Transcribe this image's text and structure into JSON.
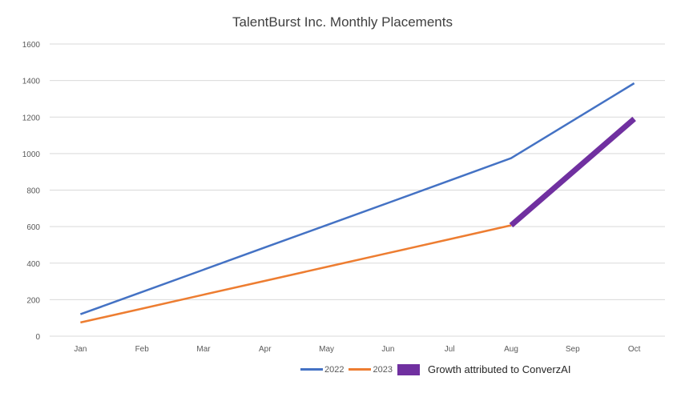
{
  "chart_data": {
    "type": "line",
    "title": "TalentBurst Inc. Monthly Placements",
    "xlabel": "",
    "ylabel": "",
    "categories": [
      "Jan",
      "Feb",
      "Mar",
      "Apr",
      "May",
      "Jun",
      "Jul",
      "Aug",
      "Sep",
      "Oct"
    ],
    "ylim": [
      0,
      1600
    ],
    "yticks": [
      0,
      200,
      400,
      600,
      800,
      1000,
      1200,
      1400,
      1600
    ],
    "grid": true,
    "legend_position": "bottom-right",
    "series": [
      {
        "name": "2022",
        "color": "#4472C4",
        "values": [
          120,
          242,
          364,
          486,
          608,
          730,
          852,
          975,
          1180,
          1385
        ]
      },
      {
        "name": "2023",
        "color": "#ED7D31",
        "values": [
          75,
          151,
          227,
          303,
          379,
          455,
          531,
          607,
          null,
          null
        ]
      },
      {
        "name": "Growth attributed to ConverzAI",
        "color": "#7030A0",
        "values": [
          null,
          null,
          null,
          null,
          null,
          null,
          null,
          607,
          null,
          1190
        ]
      }
    ]
  }
}
